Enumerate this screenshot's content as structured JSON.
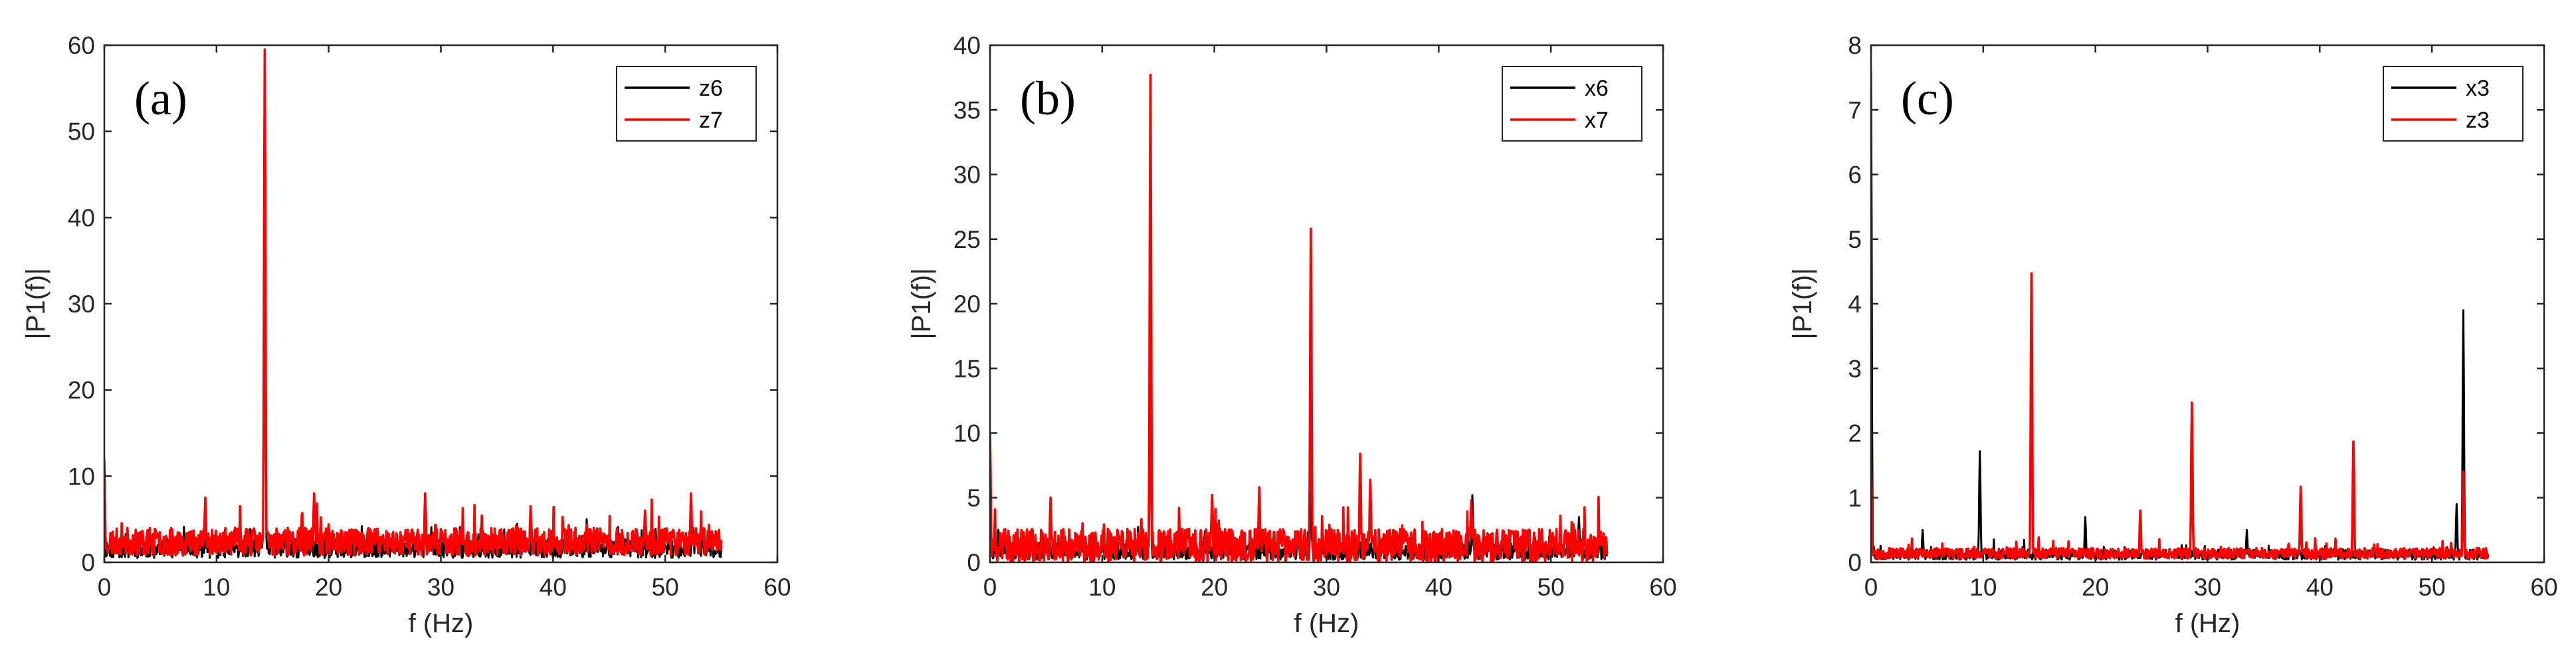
{
  "chart_data": [
    {
      "type": "line",
      "panel_label": "(a)",
      "xlabel": "f (Hz)",
      "ylabel": "|P1(f)|",
      "xlim": [
        0,
        60
      ],
      "ylim": [
        0,
        60
      ],
      "xticks": [
        0,
        10,
        20,
        30,
        40,
        50,
        60
      ],
      "yticks": [
        0,
        10,
        20,
        30,
        40,
        50,
        60
      ],
      "xtick_labels": [
        "0",
        "10",
        "20",
        "30",
        "40",
        "50",
        "60"
      ],
      "ytick_labels": [
        "0",
        "10",
        "20",
        "30",
        "40",
        "50",
        "60"
      ],
      "legend_position": "top-right",
      "series": [
        {
          "name": "z6",
          "color": "#000000",
          "baseline": 1.6,
          "noise": 1.1,
          "seed": 11,
          "peaks": [
            [
              0,
              12
            ],
            [
              14.3,
              59
            ],
            [
              28.6,
              7.5
            ],
            [
              43,
              5
            ],
            [
              52.5,
              4
            ]
          ]
        },
        {
          "name": "z7",
          "color": "#ff0000",
          "baseline": 2.4,
          "noise": 1.6,
          "seed": 23,
          "peaks": [
            [
              0,
              10
            ],
            [
              9,
              7.5
            ],
            [
              14.3,
              59.5
            ],
            [
              18.7,
              8
            ],
            [
              28.6,
              8
            ],
            [
              38,
              6.5
            ],
            [
              48.2,
              6
            ],
            [
              52.3,
              8
            ]
          ]
        }
      ]
    },
    {
      "type": "line",
      "panel_label": "(b)",
      "xlabel": "f (Hz)",
      "ylabel": "|P1(f)|",
      "xlim": [
        0,
        60
      ],
      "ylim": [
        0,
        40
      ],
      "xticks": [
        0,
        10,
        20,
        30,
        40,
        50,
        60
      ],
      "yticks": [
        0,
        5,
        10,
        15,
        20,
        25,
        30,
        35,
        40
      ],
      "xtick_labels": [
        "0",
        "10",
        "20",
        "30",
        "40",
        "50",
        "60"
      ],
      "ytick_labels": [
        "0",
        "5",
        "10",
        "15",
        "20",
        "25",
        "30",
        "35",
        "40"
      ],
      "legend_position": "top-right",
      "series": [
        {
          "name": "x6",
          "color": "#000000",
          "baseline": 0.9,
          "noise": 0.7,
          "seed": 37,
          "peaks": [
            [
              0,
              4
            ],
            [
              14.3,
              16
            ],
            [
              28.6,
              7
            ],
            [
              43,
              5.2
            ],
            [
              52.5,
              3.5
            ]
          ]
        },
        {
          "name": "x7",
          "color": "#ff0000",
          "baseline": 1.3,
          "noise": 1.3,
          "seed": 41,
          "peaks": [
            [
              0,
              10
            ],
            [
              5.4,
              5
            ],
            [
              14.3,
              37.7
            ],
            [
              19.8,
              5.2
            ],
            [
              24,
              5.8
            ],
            [
              28.6,
              25.8
            ],
            [
              33,
              8.4
            ],
            [
              33.9,
              6.4
            ],
            [
              42.9,
              4.8
            ]
          ]
        }
      ]
    },
    {
      "type": "line",
      "panel_label": "(c)",
      "xlabel": "f (Hz)",
      "ylabel": "|P1(f)|",
      "xlim": [
        0,
        60
      ],
      "ylim": [
        0,
        8
      ],
      "xticks": [
        0,
        10,
        20,
        30,
        40,
        50,
        60
      ],
      "yticks": [
        0,
        1,
        2,
        3,
        4,
        5,
        6,
        7,
        8
      ],
      "xtick_labels": [
        "0",
        "10",
        "20",
        "30",
        "40",
        "50",
        "60"
      ],
      "ytick_labels": [
        "0",
        "1",
        "2",
        "3",
        "4",
        "5",
        "6",
        "7",
        "8"
      ],
      "legend_position": "top-right",
      "series": [
        {
          "name": "x3",
          "color": "#000000",
          "baseline": 0.12,
          "noise": 0.08,
          "seed": 53,
          "peaks": [
            [
              0,
              7.6
            ],
            [
              4.6,
              0.5
            ],
            [
              9.7,
              1.72
            ],
            [
              19.1,
              0.7
            ],
            [
              33.5,
              0.5
            ],
            [
              52.2,
              0.9
            ],
            [
              52.8,
              3.9
            ]
          ]
        },
        {
          "name": "z3",
          "color": "#ff0000",
          "baseline": 0.14,
          "noise": 0.08,
          "seed": 67,
          "peaks": [
            [
              0,
              1.6
            ],
            [
              14.3,
              4.47
            ],
            [
              24,
              0.8
            ],
            [
              28.6,
              2.47
            ],
            [
              38.3,
              1.17
            ],
            [
              43,
              1.87
            ],
            [
              52.8,
              1.4
            ]
          ]
        }
      ]
    }
  ]
}
